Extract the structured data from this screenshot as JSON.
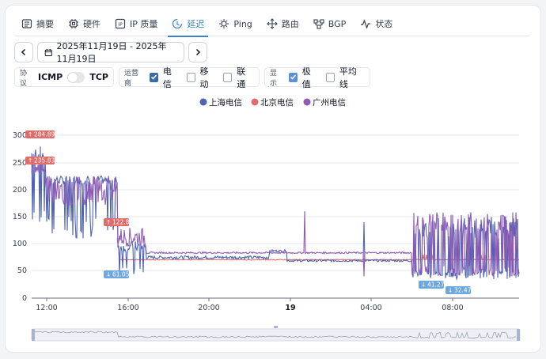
{
  "tabs": [
    {
      "label": "摘要",
      "icon": "summary-icon"
    },
    {
      "label": "硬件",
      "icon": "chip-icon"
    },
    {
      "label": "IP 质量",
      "icon": "ip-icon"
    },
    {
      "label": "延迟",
      "icon": "latency-icon",
      "active": true
    },
    {
      "label": "Ping",
      "icon": "ping-icon"
    },
    {
      "label": "路由",
      "icon": "route-icon"
    },
    {
      "label": "BGP",
      "icon": "bgp-icon"
    },
    {
      "label": "状态",
      "icon": "status-icon"
    }
  ],
  "date_range": "2025年11月19日 - 2025年11月19日",
  "filters": {
    "protocol": {
      "label": "协议",
      "icmp": "ICMP",
      "tcp": "TCP"
    },
    "carrier": {
      "label": "运营商",
      "items": [
        {
          "label": "电信",
          "checked": true
        },
        {
          "label": "移动",
          "checked": false
        },
        {
          "label": "联通",
          "checked": false
        }
      ]
    },
    "display": {
      "label": "显示",
      "items": [
        {
          "label": "极值",
          "checked": true
        },
        {
          "label": "平均线",
          "checked": false
        }
      ]
    }
  },
  "colors": {
    "accent": "#3b82c4",
    "shanghai": "#4e63b3",
    "beijing": "#e06c6c",
    "guangzhou": "#8f5bb5"
  },
  "chart_data": {
    "type": "line",
    "legend": [
      "上海电信",
      "北京电信",
      "广州电信"
    ],
    "y_ticks": [
      "0",
      "50",
      "100",
      "150",
      "200",
      "250",
      "300"
    ],
    "ylim": [
      0,
      300
    ],
    "x_ticks": [
      "12:00",
      "16:00",
      "20:00",
      "19",
      "04:00",
      "08:00"
    ],
    "annotations": {
      "max1": "284.89",
      "max2": "235.83",
      "max3": "122.8",
      "min1": "61.05",
      "min2": "41.27",
      "min3": "32.47"
    }
  }
}
